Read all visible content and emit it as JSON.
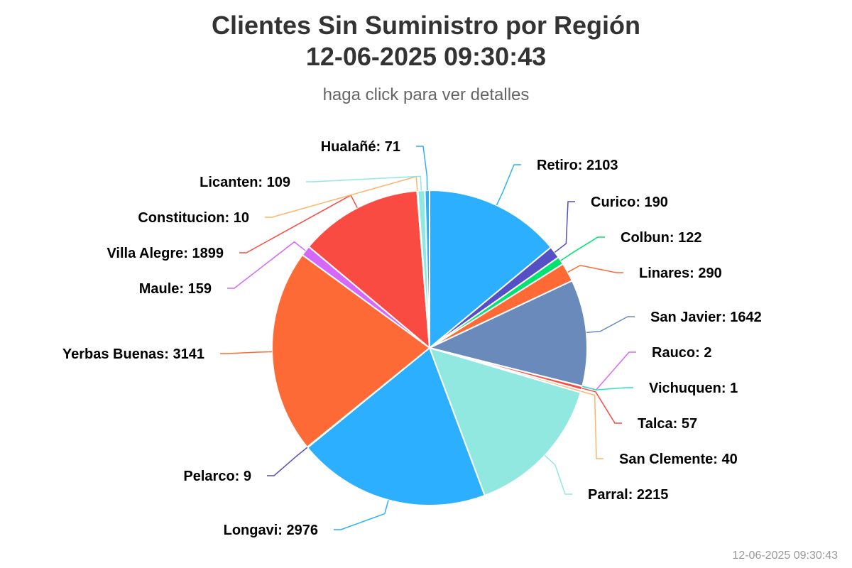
{
  "header": {
    "title_line1": "Clientes Sin Suministro por Región",
    "title_line2": "12-06-2025 09:30:43",
    "subtitle": "haga click para ver detalles"
  },
  "footer": {
    "timestamp": "12-06-2025 09:30:43"
  },
  "chart_data": {
    "type": "pie",
    "title": "Clientes Sin Suministro por Región 12-06-2025 09:30:43",
    "subtitle": "haga click para ver detalles",
    "categories": [
      "Retiro",
      "Curico",
      "Colbun",
      "Linares",
      "San Javier",
      "Rauco",
      "Vichuquen",
      "Talca",
      "San Clemente",
      "Parral",
      "Longavi",
      "Pelarco",
      "Yerbas Buenas",
      "Maule",
      "Villa Alegre",
      "Constitucion",
      "Licanten",
      "Hualañé"
    ],
    "values": [
      2103,
      190,
      122,
      290,
      1642,
      2,
      1,
      57,
      40,
      2215,
      2976,
      9,
      3141,
      159,
      1899,
      10,
      109,
      71
    ],
    "colors": [
      "#2caffe",
      "#544fc5",
      "#00e272",
      "#fe6a35",
      "#6b8abc",
      "#d568fb",
      "#2ee0ca",
      "#fa4b42",
      "#feb56a",
      "#91e8e1",
      "#2caffe",
      "#544fc5",
      "#fe6a35",
      "#d568fb",
      "#fa4b42",
      "#feb56a",
      "#91e8e1",
      "#2caffe"
    ],
    "labels": [
      "Retiro: 2103",
      "Curico: 190",
      "Colbun: 122",
      "Linares: 290",
      "San Javier: 1642",
      "Rauco: 2",
      "Vichuquen: 1",
      "Talca: 57",
      "San Clemente: 40",
      "Parral: 2215",
      "Longavi: 2976",
      "Pelarco: 9",
      "Yerbas Buenas: 3141",
      "Maule: 159",
      "Villa Alegre: 1899",
      "Constitucion: 10",
      "Licanten: 109",
      "Hualañé: 71"
    ]
  }
}
